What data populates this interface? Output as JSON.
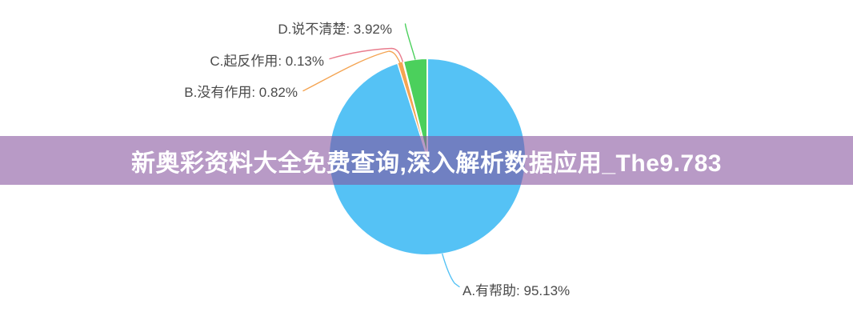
{
  "banner": {
    "text": "新奥彩资料大全免费查询,深入解析数据应用_The9.783",
    "bg_color": "#85519d",
    "bg_opacity": 0.58,
    "text_color": "#ffffff"
  },
  "chart_data": {
    "type": "pie",
    "title": "",
    "unit": "%",
    "legend_position": "none",
    "label_text_color": "#4a4a4a",
    "slice_border_color": "#ffffff",
    "items": [
      {
        "key": "a",
        "name": "A.有帮助",
        "value": 95.13,
        "color": "#55c2f5",
        "label": "A.有帮助: 95.13%"
      },
      {
        "key": "b",
        "name": "B.没有作用",
        "value": 0.82,
        "color": "#f4a452",
        "label": "B.没有作用: 0.82%"
      },
      {
        "key": "c",
        "name": "C.起反作用",
        "value": 0.13,
        "color": "#e97c8d",
        "label": "C.起反作用: 0.13%"
      },
      {
        "key": "d",
        "name": "D.说不清楚",
        "value": 3.92,
        "color": "#4bd05c",
        "label": "D.说不清楚: 3.92%"
      }
    ]
  }
}
